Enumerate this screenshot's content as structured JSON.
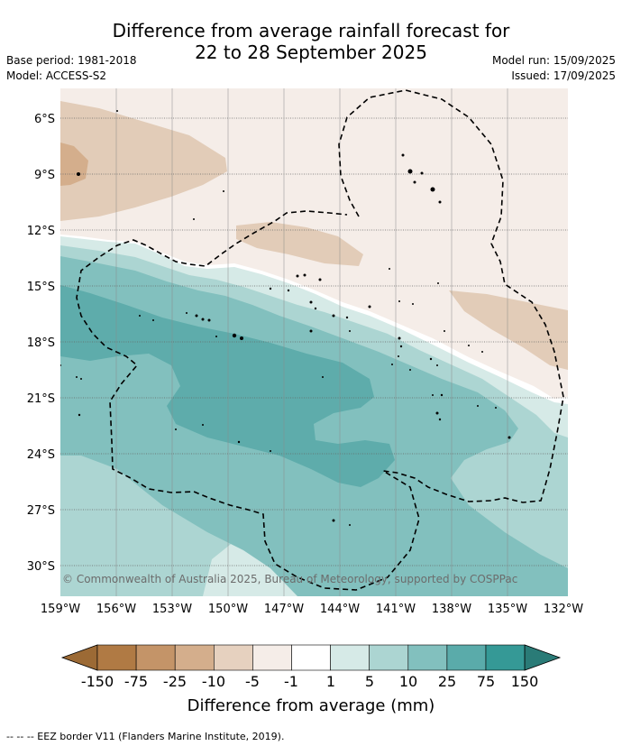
{
  "title_line1": "Difference from average rainfall forecast for",
  "title_line2": "22 to 28 September 2025",
  "base_period": "Base period: 1981-2018",
  "model": "Model: ACCESS-S2",
  "model_run": "Model run: 15/09/2025",
  "issued": "Issued: 17/09/2025",
  "lat_labels": [
    "6°S",
    "9°S",
    "12°S",
    "15°S",
    "18°S",
    "21°S",
    "24°S",
    "27°S",
    "30°S"
  ],
  "lon_labels": [
    "159°W",
    "156°W",
    "153°W",
    "150°W",
    "147°W",
    "144°W",
    "141°W",
    "138°W",
    "135°W",
    "132°W"
  ],
  "copyright": "© Commonwealth of Australia 2025, Bureau of Meteorology, supported by COSPPac",
  "legend": {
    "title": "Difference from average (mm)",
    "ticks": [
      "-150",
      "-75",
      "-25",
      "-10",
      "-5",
      "-1",
      "1",
      "5",
      "10",
      "25",
      "75",
      "150"
    ],
    "colors": [
      "#9c6a35",
      "#b07a44",
      "#c49468",
      "#d4ae8c",
      "#e6d1bf",
      "#f5ede8",
      "#ffffff",
      "#d6eae7",
      "#acd5d2",
      "#82c0be",
      "#5aabaa",
      "#359996",
      "#2a7b77"
    ]
  },
  "eez_note": "-- -- -- EEZ border V11 (Flanders Marine Institute, 2019)."
}
